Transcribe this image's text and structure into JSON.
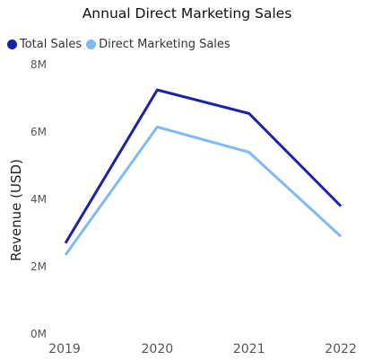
{
  "chart_data": {
    "type": "line",
    "title": "Annual Direct Marketing Sales",
    "xlabel": "",
    "ylabel": "Revenue (USD)",
    "categories": [
      "2019",
      "2020",
      "2021",
      "2022"
    ],
    "ylim": [
      0,
      8000000
    ],
    "yticks": [
      0,
      2000000,
      4000000,
      6000000,
      8000000
    ],
    "ytick_labels": [
      "0M",
      "2M",
      "4M",
      "6M",
      "8M"
    ],
    "grid": false,
    "legend_position": "top-left",
    "series": [
      {
        "name": "Total Sales",
        "color": "#1a23a8",
        "values": [
          2700000,
          7250000,
          6550000,
          3800000
        ]
      },
      {
        "name": "Direct Marketing Sales",
        "color": "#7fbaf5",
        "values": [
          2350000,
          6150000,
          5400000,
          2900000
        ]
      }
    ]
  }
}
